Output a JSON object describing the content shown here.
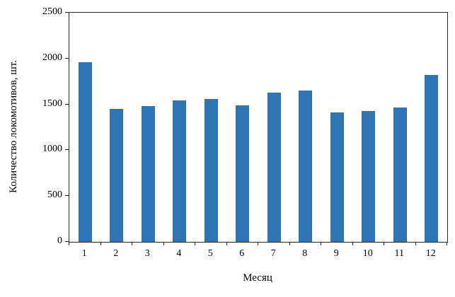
{
  "chart_data": {
    "type": "bar",
    "title": "",
    "xlabel": "Месяц",
    "ylabel": "Количество локомотивов, шт.",
    "categories": [
      "1",
      "2",
      "3",
      "4",
      "5",
      "6",
      "7",
      "8",
      "9",
      "10",
      "11",
      "12"
    ],
    "values": [
      1960,
      1450,
      1480,
      1540,
      1560,
      1490,
      1630,
      1650,
      1410,
      1430,
      1470,
      1820
    ],
    "ylim": [
      0,
      2500
    ],
    "yticks": [
      0,
      500,
      1000,
      1500,
      2000,
      2500
    ],
    "bar_color": "#2e75b6",
    "spine_color": "#262626",
    "grid": "off",
    "legend": "none",
    "tick_style": "outward, x ticks at category boundaries"
  }
}
